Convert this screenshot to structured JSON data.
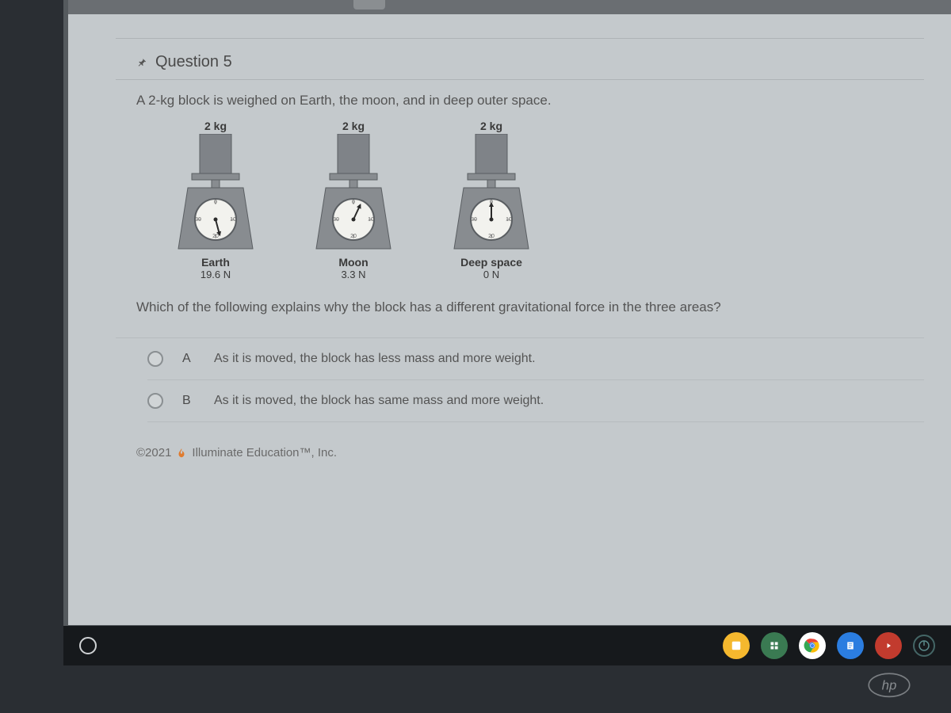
{
  "question": {
    "number_label": "Question 5",
    "stem": "A 2-kg block is weighed on Earth, the moon, and in deep outer space.",
    "sub_question": "Which of the following explains why the block has a different gravitational force in the three areas?",
    "scales": [
      {
        "mass": "2 kg",
        "location": "Earth",
        "weight": "19.6 N",
        "needle_deg": 165
      },
      {
        "mass": "2 kg",
        "location": "Moon",
        "weight": "3.3 N",
        "needle_deg": 25
      },
      {
        "mass": "2 kg",
        "location": "Deep space",
        "weight": "0 N",
        "needle_deg": 0
      }
    ],
    "dial_marks": [
      "0",
      "10",
      "20",
      "30"
    ],
    "choices": [
      {
        "letter": "A",
        "text": "As it is moved, the block has less mass and more weight."
      },
      {
        "letter": "B",
        "text": "As it is moved, the block has same mass and more weight."
      }
    ]
  },
  "footer": {
    "copyright": "©2021",
    "company": "Illuminate Education™, Inc."
  },
  "colors": {
    "block": "#7f8388",
    "scale_body": "#888c90",
    "dial_face": "#f2f2ee",
    "needle": "#2a2a2a",
    "text_dark": "#3a3a3a"
  }
}
